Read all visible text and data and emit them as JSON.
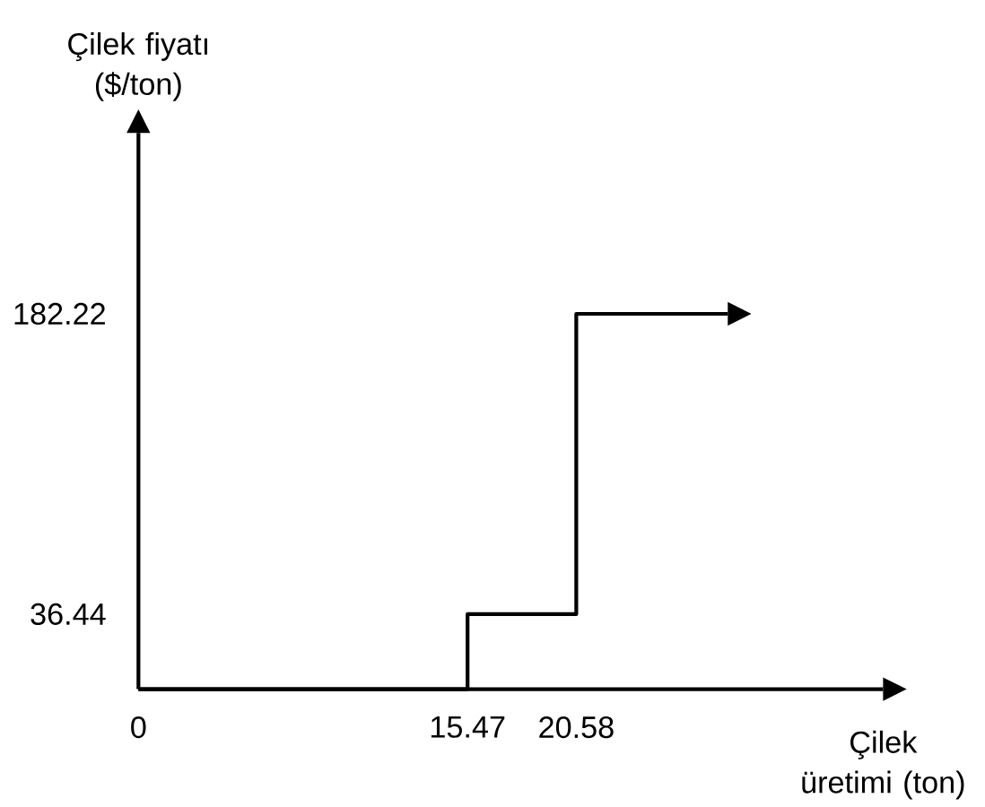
{
  "chart_data": {
    "type": "step",
    "xlabel": "Çilek üretimi (ton)",
    "ylabel": "Çilek fiyatı ($/ton)",
    "xlim": [
      0,
      35
    ],
    "ylim": [
      0,
      270
    ],
    "xticks": [
      0,
      15.47,
      20.58
    ],
    "yticks": [
      36.44,
      182.22
    ],
    "series": [
      {
        "color": "#000000",
        "x": [
          0,
          15.47,
          20.58,
          27.7
        ],
        "values": [
          0,
          36.44,
          182.22,
          182.22
        ]
      }
    ]
  }
}
